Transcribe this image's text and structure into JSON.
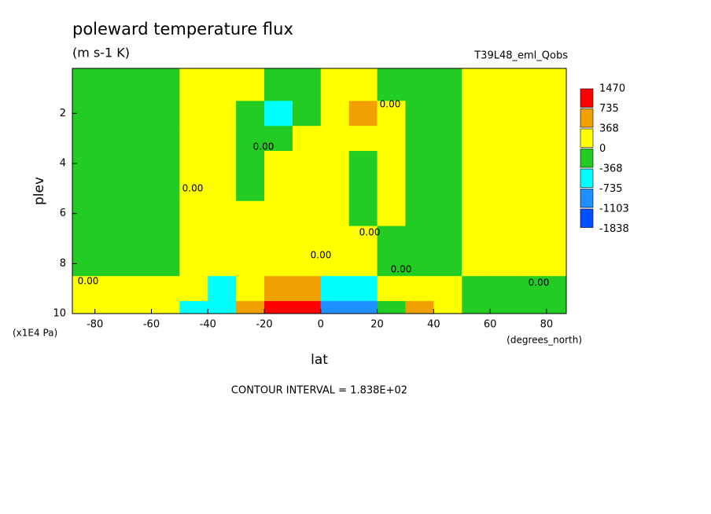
{
  "chart_data": {
    "type": "contour",
    "title": "poleward temperature flux",
    "subtitle": "(m s-1 K)",
    "dataset": "T39L48_eml_Qobs",
    "x_label": "lat",
    "x_units": "(degrees_north)",
    "y_label": "plev",
    "y_units": "(x1E4 Pa)",
    "footer": "CONTOUR INTERVAL = 1.838E+02",
    "contour_label": "0.00",
    "xlim": [
      -88,
      87
    ],
    "ylim": [
      10,
      0.2
    ],
    "xticks": [
      -80,
      -60,
      -40,
      -20,
      0,
      20,
      40,
      60,
      80
    ],
    "yticks": [
      2,
      4,
      6,
      8,
      10
    ],
    "x": [
      -85,
      -75,
      -65,
      -55,
      -45,
      -35,
      -25,
      -15,
      -5,
      5,
      15,
      25,
      35,
      45,
      55,
      65,
      75,
      85
    ],
    "y": [
      1,
      2,
      3,
      4,
      5,
      6,
      7,
      8,
      9,
      10
    ],
    "z": [
      [
        -150,
        -150,
        -150,
        -150,
        150,
        150,
        150,
        -150,
        -150,
        150,
        150,
        -150,
        -150,
        -150,
        150,
        150,
        150,
        150
      ],
      [
        -150,
        -150,
        -150,
        -150,
        150,
        150,
        -150,
        -500,
        -150,
        150,
        500,
        150,
        -150,
        -150,
        150,
        150,
        150,
        150
      ],
      [
        -150,
        -150,
        -150,
        -150,
        150,
        150,
        -150,
        -150,
        150,
        150,
        150,
        150,
        -150,
        -150,
        150,
        150,
        150,
        150
      ],
      [
        -150,
        -150,
        -150,
        -150,
        150,
        150,
        -150,
        150,
        150,
        150,
        -150,
        150,
        -150,
        -150,
        150,
        150,
        150,
        150
      ],
      [
        -150,
        -150,
        -150,
        -150,
        150,
        150,
        -150,
        150,
        150,
        150,
        -150,
        150,
        -150,
        -150,
        150,
        150,
        150,
        150
      ],
      [
        -150,
        -150,
        -150,
        -150,
        150,
        150,
        150,
        150,
        150,
        150,
        -150,
        150,
        -150,
        -150,
        150,
        150,
        150,
        150
      ],
      [
        -150,
        -150,
        -150,
        -150,
        150,
        150,
        150,
        150,
        150,
        150,
        150,
        -150,
        -150,
        -150,
        150,
        150,
        150,
        150
      ],
      [
        -150,
        -150,
        -150,
        -150,
        150,
        150,
        150,
        150,
        150,
        150,
        150,
        -150,
        -150,
        -150,
        150,
        150,
        150,
        150
      ],
      [
        150,
        150,
        150,
        150,
        150,
        -500,
        150,
        500,
        500,
        -500,
        -500,
        150,
        150,
        150,
        -150,
        -150,
        -150,
        -150
      ],
      [
        150,
        150,
        150,
        150,
        -500,
        -500,
        500,
        1000,
        1000,
        -900,
        -900,
        -150,
        500,
        150,
        -150,
        -150,
        -150,
        -150
      ]
    ],
    "colorbar": {
      "levels": [
        1470,
        735,
        368,
        0,
        -368,
        -735,
        -1103,
        -1838
      ],
      "colors": [
        "#ff0000",
        "#f0a000",
        "#ffff00",
        "#22cc22",
        "#00ffff",
        "#1e90ff",
        "#0050ff"
      ]
    }
  }
}
